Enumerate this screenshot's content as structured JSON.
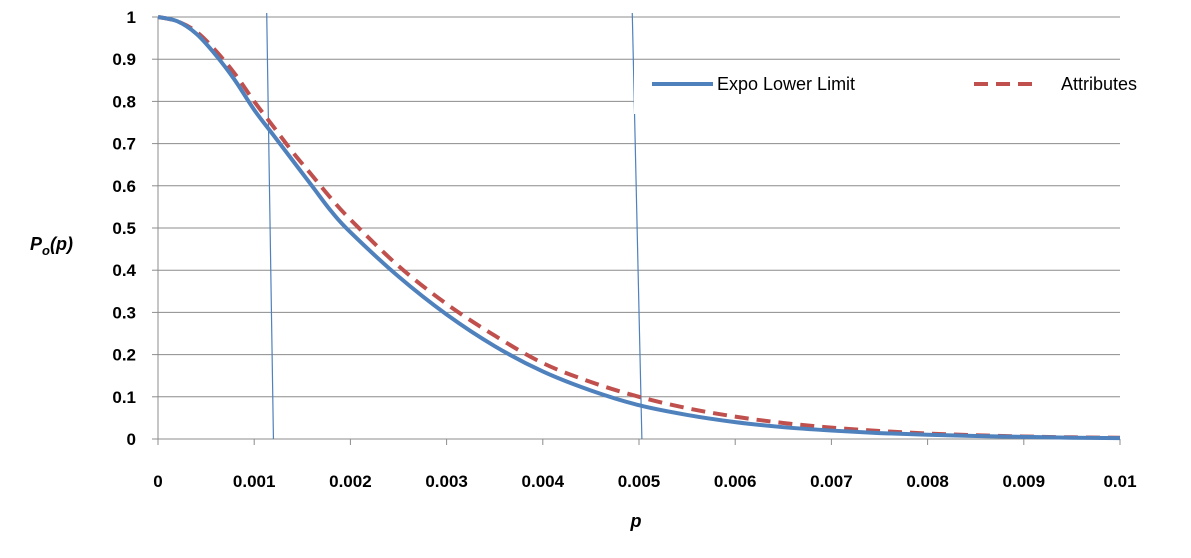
{
  "chart_data": {
    "type": "line",
    "title": "",
    "xlabel": "p",
    "ylabel_main": "P",
    "ylabel_sub": "o",
    "ylabel_tail": "(p)",
    "xlim": [
      0,
      0.01
    ],
    "ylim": [
      0,
      1
    ],
    "x_ticks": [
      "0",
      "0.001",
      "0.002",
      "0.003",
      "0.004",
      "0.005",
      "0.006",
      "0.007",
      "0.008",
      "0.009",
      "0.01"
    ],
    "y_ticks": [
      "0",
      "0.1",
      "0.2",
      "0.3",
      "0.4",
      "0.5",
      "0.6",
      "0.7",
      "0.8",
      "0.9",
      "1"
    ],
    "grid": "horizontal",
    "legend_position": "top-right",
    "series": [
      {
        "name": "Expo Lower Limit",
        "style": "solid",
        "color": "#4F81BD",
        "x": [
          0,
          0.0002,
          0.0004,
          0.0006,
          0.0008,
          0.001,
          0.0012,
          0.0014,
          0.0016,
          0.0018,
          0.002,
          0.0025,
          0.003,
          0.0035,
          0.004,
          0.0045,
          0.005,
          0.0055,
          0.006,
          0.0065,
          0.007,
          0.0075,
          0.008,
          0.0085,
          0.009,
          0.0095,
          0.01
        ],
        "y": [
          1.0,
          0.99,
          0.96,
          0.91,
          0.85,
          0.78,
          0.72,
          0.66,
          0.6,
          0.54,
          0.49,
          0.385,
          0.295,
          0.22,
          0.16,
          0.115,
          0.08,
          0.057,
          0.04,
          0.028,
          0.02,
          0.014,
          0.01,
          0.007,
          0.005,
          0.003,
          0.002
        ]
      },
      {
        "name": "Attributes",
        "style": "dashed",
        "color": "#C0504D",
        "x": [
          0,
          0.0002,
          0.0004,
          0.0006,
          0.0008,
          0.001,
          0.0012,
          0.0014,
          0.0016,
          0.0018,
          0.002,
          0.0025,
          0.003,
          0.0035,
          0.004,
          0.0045,
          0.005,
          0.0055,
          0.006,
          0.0065,
          0.007,
          0.0075,
          0.008,
          0.0085,
          0.009,
          0.0095,
          0.01
        ],
        "y": [
          1.0,
          0.99,
          0.965,
          0.92,
          0.865,
          0.8,
          0.74,
          0.68,
          0.625,
          0.57,
          0.52,
          0.41,
          0.32,
          0.245,
          0.18,
          0.135,
          0.1,
          0.073,
          0.053,
          0.038,
          0.027,
          0.019,
          0.013,
          0.009,
          0.006,
          0.004,
          0.003
        ]
      }
    ],
    "marker_lines": [
      {
        "x_top": 0.00113,
        "x_bottom": 0.0012
      },
      {
        "x_top": 0.00493,
        "x_bottom": 0.00503
      }
    ]
  }
}
